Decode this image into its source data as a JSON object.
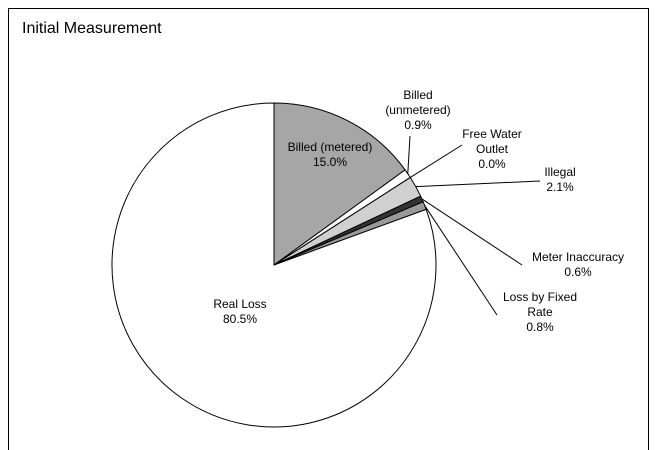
{
  "chart_data": {
    "type": "pie",
    "title": "Initial Measurement",
    "categories": [
      "Billed (metered)",
      "Billed (unmetered)",
      "Free Water Outlet",
      "Illegal",
      "Meter Inaccuracy",
      "Loss by Fixed Rate",
      "Real Loss"
    ],
    "values": [
      15.0,
      0.9,
      0.0,
      2.1,
      0.6,
      0.8,
      80.5
    ],
    "value_labels": [
      "15.0%",
      "0.9%",
      "0.0%",
      "2.1%",
      "0.6%",
      "0.8%",
      "80.5%"
    ],
    "colors": [
      "#a6a6a6",
      "#ffffff",
      "#ffffff",
      "#d0d0d0",
      "#333333",
      "#999999",
      "#ffffff"
    ]
  }
}
